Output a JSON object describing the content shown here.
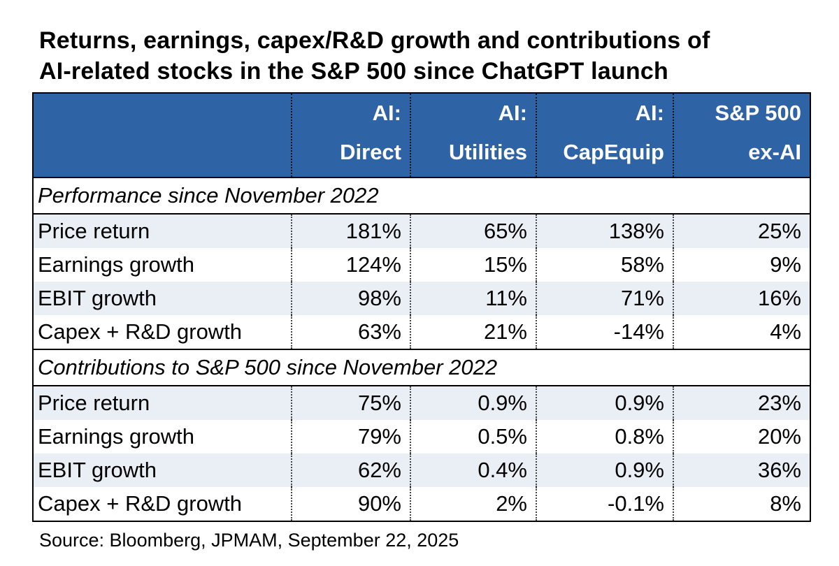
{
  "title": {
    "line1": "Returns, earnings, capex/R&D growth and contributions of",
    "line2": "AI-related stocks in the S&P 500 since ChatGPT launch"
  },
  "columns": [
    {
      "line1": "AI:",
      "line2": "Direct"
    },
    {
      "line1": "AI:",
      "line2": "Utilities"
    },
    {
      "line1": "AI:",
      "line2": "CapEquip"
    },
    {
      "line1": "S&P 500",
      "line2": "ex-AI"
    }
  ],
  "sections": [
    {
      "heading": "Performance since November 2022",
      "rows": [
        {
          "label": "Price return",
          "values": [
            "181%",
            "65%",
            "138%",
            "25%"
          ]
        },
        {
          "label": "Earnings growth",
          "values": [
            "124%",
            "15%",
            "58%",
            "9%"
          ]
        },
        {
          "label": "EBIT growth",
          "values": [
            "98%",
            "11%",
            "71%",
            "16%"
          ]
        },
        {
          "label": "Capex + R&D growth",
          "values": [
            "63%",
            "21%",
            "-14%",
            "4%"
          ]
        }
      ]
    },
    {
      "heading": "Contributions to S&P 500 since November 2022",
      "rows": [
        {
          "label": "Price return",
          "values": [
            "75%",
            "0.9%",
            "0.9%",
            "23%"
          ]
        },
        {
          "label": "Earnings growth",
          "values": [
            "79%",
            "0.5%",
            "0.8%",
            "20%"
          ]
        },
        {
          "label": "EBIT growth",
          "values": [
            "62%",
            "0.4%",
            "0.9%",
            "36%"
          ]
        },
        {
          "label": "Capex + R&D growth",
          "values": [
            "90%",
            "2%",
            "-0.1%",
            "8%"
          ]
        }
      ]
    }
  ],
  "source": "Source: Bloomberg, JPMAM, September 22, 2025",
  "colors": {
    "header_bg": "#2e63a5",
    "header_text": "#ffffff",
    "row_alt_bg": "#eaeef5"
  }
}
